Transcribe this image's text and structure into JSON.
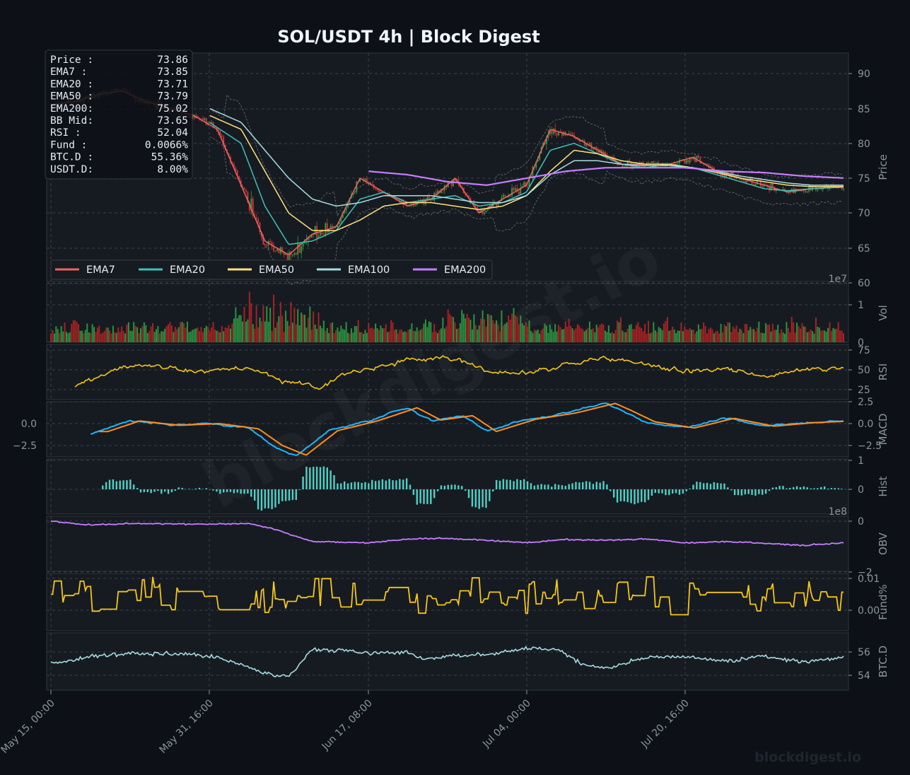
{
  "title": "SOL/USDT  4h  |  Block Digest",
  "watermark": "blockdigest.io",
  "info_box": [
    {
      "label": "Price :",
      "value": "73.86"
    },
    {
      "label": "EMA7  :",
      "value": "73.85"
    },
    {
      "label": "EMA20 :",
      "value": "73.71"
    },
    {
      "label": "EMA50 :",
      "value": "73.79"
    },
    {
      "label": "EMA200:",
      "value": "75.02"
    },
    {
      "label": "BB Mid:",
      "value": "73.65"
    },
    {
      "label": "RSI   :",
      "value": "52.04"
    },
    {
      "label": "Fund  :",
      "value": "0.0066%"
    },
    {
      "label": "BTC.D :",
      "value": "55.36%"
    },
    {
      "label": "USDT.D:",
      "value": "8.00%"
    }
  ],
  "legend": [
    {
      "name": "EMA7",
      "color": "#f0625f"
    },
    {
      "name": "EMA20",
      "color": "#40c0b8"
    },
    {
      "name": "EMA50",
      "color": "#ffe27a"
    },
    {
      "name": "EMA100",
      "color": "#a8dce0"
    },
    {
      "name": "EMA200",
      "color": "#c77dff"
    }
  ],
  "colors": {
    "background": "#0d1117",
    "panel": "#161b22",
    "up_candle": "#2ea043",
    "down_candle": "#da3633",
    "rsi": "#f5c518",
    "macd": "#1fb5ff",
    "signal": "#ff8c1a",
    "hist": "#4fd1c5",
    "obv": "#c77dff",
    "funding": "#f5c518",
    "btcd": "#a8dce0"
  },
  "chart_data": {
    "type": "line",
    "x_ticks": [
      "May 15, 00:00",
      "May 31, 16:00",
      "Jun 17, 08:00",
      "Jul 04, 00:00",
      "Jul 20, 16:00"
    ],
    "panels": [
      {
        "name": "Price",
        "ylabel": "Price",
        "ylim": [
          60,
          93
        ],
        "yticks": [
          "60",
          "65",
          "70",
          "75",
          "80",
          "85",
          "90"
        ],
        "series": [
          {
            "name": "EMA7",
            "x": [
              0,
              0.03,
              0.06,
              0.09,
              0.12,
              0.15,
              0.18,
              0.21,
              0.24,
              0.27,
              0.3,
              0.33,
              0.36,
              0.39,
              0.42,
              0.45,
              0.48,
              0.51,
              0.54,
              0.57,
              0.6,
              0.63,
              0.66,
              0.69,
              0.72,
              0.75,
              0.78,
              0.81,
              0.84,
              0.87,
              0.9,
              0.93,
              0.96,
              1.0
            ],
            "values": [
              85.5,
              86,
              87,
              87.5,
              86,
              85,
              84,
              82,
              74,
              66,
              64,
              67,
              68,
              75,
              73,
              71,
              72,
              75,
              70,
              72,
              74,
              82,
              81,
              79,
              77,
              77,
              77,
              78,
              76,
              75,
              74,
              73,
              73.5,
              73.85
            ]
          },
          {
            "name": "EMA20",
            "x": [
              0.2,
              0.24,
              0.27,
              0.3,
              0.33,
              0.36,
              0.39,
              0.42,
              0.45,
              0.48,
              0.51,
              0.54,
              0.57,
              0.6,
              0.63,
              0.66,
              0.69,
              0.72,
              0.75,
              0.78,
              0.81,
              0.84,
              0.87,
              0.9,
              0.93,
              0.96,
              1.0
            ],
            "values": [
              83,
              80,
              71,
              65.5,
              66,
              67.5,
              72,
              73,
              71.5,
              72,
              72.5,
              71,
              71.5,
              73,
              79,
              80,
              78.5,
              77,
              76.5,
              77,
              76.5,
              75.5,
              74.5,
              73.5,
              73.2,
              73.5,
              73.71
            ]
          },
          {
            "name": "EMA50",
            "x": [
              0.2,
              0.24,
              0.27,
              0.3,
              0.33,
              0.36,
              0.39,
              0.42,
              0.45,
              0.48,
              0.51,
              0.54,
              0.57,
              0.6,
              0.63,
              0.66,
              0.69,
              0.72,
              0.75,
              0.78,
              0.81,
              0.84,
              0.87,
              0.9,
              0.93,
              0.96,
              1.0
            ],
            "values": [
              84,
              82,
              76,
              70,
              67.5,
              67.5,
              69,
              71,
              71.5,
              71.5,
              71,
              70.5,
              71,
              72.5,
              76,
              79,
              78.5,
              77.5,
              77,
              77,
              76.5,
              75.8,
              75,
              74.5,
              74,
              73.8,
              73.79
            ]
          },
          {
            "name": "EMA100",
            "x": [
              0.2,
              0.24,
              0.27,
              0.3,
              0.33,
              0.36,
              0.39,
              0.42,
              0.45,
              0.48,
              0.51,
              0.54,
              0.57,
              0.6,
              0.63,
              0.66,
              0.69,
              0.72,
              0.75,
              0.78,
              0.81,
              0.84,
              0.87,
              0.9,
              0.93,
              0.96,
              1.0
            ],
            "values": [
              85,
              83,
              79,
              75,
              72,
              71,
              71.5,
              72.5,
              72.5,
              72.5,
              72,
              71.5,
              71.5,
              72.5,
              75.5,
              77.5,
              77.5,
              77,
              76.8,
              76.8,
              76.5,
              76,
              75.3,
              74.8,
              74.3,
              74,
              74
            ]
          },
          {
            "name": "EMA200",
            "x": [
              0.4,
              0.45,
              0.5,
              0.55,
              0.6,
              0.65,
              0.7,
              0.75,
              0.8,
              0.85,
              0.9,
              0.95,
              1.0
            ],
            "values": [
              76,
              75.5,
              74.5,
              74,
              75,
              76,
              76.5,
              76.5,
              76.5,
              76,
              75.8,
              75.3,
              75.02
            ]
          }
        ]
      },
      {
        "name": "Vol",
        "ylabel": "Vol",
        "ylim": [
          0,
          15000000
        ],
        "yticks": [
          "0",
          "1"
        ],
        "multiplier": "1e7"
      },
      {
        "name": "RSI",
        "ylabel": "RSI",
        "ylim": [
          15,
          80
        ],
        "yticks": [
          "25",
          "50",
          "75"
        ]
      },
      {
        "name": "MACD",
        "ylabel": "MACD",
        "ylim": [
          -4.3,
          2.6
        ],
        "yticks": [
          "−2.5",
          "0.0",
          "2.5"
        ]
      },
      {
        "name": "Hist",
        "ylabel": "Hist",
        "ylim": [
          -1.1,
          1
        ],
        "yticks": [
          "0",
          "1"
        ]
      },
      {
        "name": "OBV",
        "ylabel": "OBV",
        "ylim": [
          -210000000,
          0
        ],
        "yticks": [
          "0",
          "−2"
        ],
        "multiplier": "1e8"
      },
      {
        "name": "Fund%",
        "ylabel": "Fund%",
        "ylim": [
          -0.006,
          0.011
        ],
        "yticks": [
          "0.00",
          "0.01"
        ]
      },
      {
        "name": "BTC.D",
        "ylabel": "BTC.D",
        "ylim": [
          53,
          57.2
        ],
        "yticks": [
          "54",
          "56"
        ]
      }
    ]
  }
}
